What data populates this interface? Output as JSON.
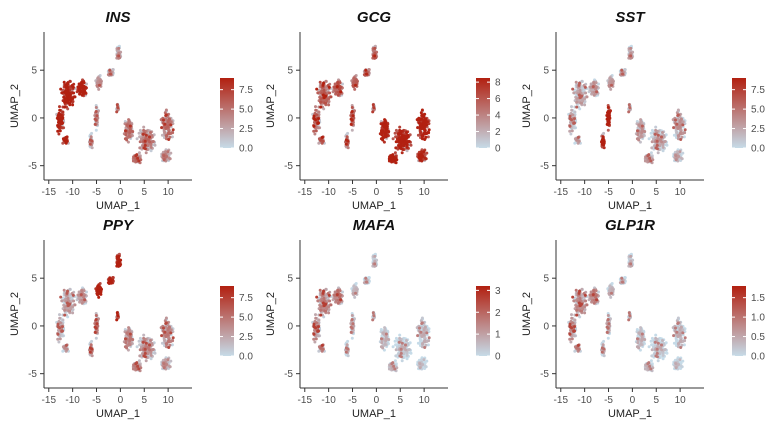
{
  "chart_data": [
    {
      "type": "scatter",
      "title": "INS",
      "xlabel": "UMAP_1",
      "ylabel": "UMAP_2",
      "xlim": [
        -16,
        15
      ],
      "ylim": [
        -6.5,
        9
      ],
      "x_ticks": [
        -15,
        -10,
        -5,
        0,
        5,
        10
      ],
      "y_ticks": [
        -5,
        0,
        5
      ],
      "x_tick_labels": [
        "-15",
        "-10",
        "-5",
        "0",
        "5",
        "10"
      ],
      "y_tick_labels": [
        "-5",
        "0",
        "5"
      ],
      "colorbar": {
        "min": 0,
        "max": 9,
        "ticks": [
          0,
          2.5,
          5,
          7.5
        ],
        "tick_labels": [
          "0.0",
          "2.5",
          "5.0",
          "7.5"
        ],
        "low_color": "#c6dbe8",
        "high_color": "#b22010"
      },
      "cluster_expression": {
        "left_island": 8.5,
        "mid_arm": 2.0,
        "upper_arm": 2.0,
        "small_group": 2.5,
        "right_island": 3.5
      }
    },
    {
      "type": "scatter",
      "title": "GCG",
      "xlabel": "UMAP_1",
      "ylabel": "UMAP_2",
      "xlim": [
        -16,
        15
      ],
      "ylim": [
        -6.5,
        9
      ],
      "x_ticks": [
        -15,
        -10,
        -5,
        0,
        5,
        10
      ],
      "y_ticks": [
        -5,
        0,
        5
      ],
      "x_tick_labels": [
        "-15",
        "-10",
        "-5",
        "0",
        "5",
        "10"
      ],
      "y_tick_labels": [
        "-5",
        "0",
        "5"
      ],
      "colorbar": {
        "min": 0,
        "max": 8.5,
        "ticks": [
          0,
          2,
          4,
          6,
          8
        ],
        "tick_labels": [
          "0",
          "2",
          "4",
          "6",
          "8"
        ],
        "low_color": "#c6dbe8",
        "high_color": "#b22010"
      },
      "cluster_expression": {
        "left_island": 4.5,
        "mid_arm": 4.0,
        "upper_arm": 4.0,
        "small_group": 3.0,
        "right_island": 7.8
      }
    },
    {
      "type": "scatter",
      "title": "SST",
      "xlabel": "UMAP_1",
      "ylabel": "UMAP_2",
      "xlim": [
        -16,
        15
      ],
      "ylim": [
        -6.5,
        9
      ],
      "x_ticks": [
        -15,
        -10,
        -5,
        0,
        5,
        10
      ],
      "y_ticks": [
        -5,
        0,
        5
      ],
      "x_tick_labels": [
        "-15",
        "-10",
        "-5",
        "0",
        "5",
        "10"
      ],
      "y_tick_labels": [
        "-5",
        "0",
        "5"
      ],
      "colorbar": {
        "min": 0,
        "max": 9,
        "ticks": [
          0,
          2.5,
          5,
          7.5
        ],
        "tick_labels": [
          "0.0",
          "2.5",
          "5.0",
          "7.5"
        ],
        "low_color": "#c6dbe8",
        "high_color": "#b22010"
      },
      "cluster_expression": {
        "left_island": 1.5,
        "mid_arm": 8.0,
        "upper_arm": 1.5,
        "small_group": 1.0,
        "right_island": 1.5
      }
    },
    {
      "type": "scatter",
      "title": "PPY",
      "xlabel": "UMAP_1",
      "ylabel": "UMAP_2",
      "xlim": [
        -16,
        15
      ],
      "ylim": [
        -6.5,
        9
      ],
      "x_ticks": [
        -15,
        -10,
        -5,
        0,
        5,
        10
      ],
      "y_ticks": [
        -5,
        0,
        5
      ],
      "x_tick_labels": [
        "-15",
        "-10",
        "-5",
        "0",
        "5",
        "10"
      ],
      "y_tick_labels": [
        "-5",
        "0",
        "5"
      ],
      "colorbar": {
        "min": 0,
        "max": 9,
        "ticks": [
          0,
          2.5,
          5,
          7.5
        ],
        "tick_labels": [
          "0.0",
          "2.5",
          "5.0",
          "7.5"
        ],
        "low_color": "#c6dbe8",
        "high_color": "#b22010"
      },
      "cluster_expression": {
        "left_island": 1.8,
        "mid_arm": 3.0,
        "upper_arm": 8.3,
        "small_group": 5.0,
        "right_island": 2.5
      }
    },
    {
      "type": "scatter",
      "title": "MAFA",
      "xlabel": "UMAP_1",
      "ylabel": "UMAP_2",
      "xlim": [
        -16,
        15
      ],
      "ylim": [
        -6.5,
        9
      ],
      "x_ticks": [
        -15,
        -10,
        -5,
        0,
        5,
        10
      ],
      "y_ticks": [
        -5,
        0,
        5
      ],
      "x_tick_labels": [
        "-15",
        "-10",
        "-5",
        "0",
        "5",
        "10"
      ],
      "y_tick_labels": [
        "-5",
        "0",
        "5"
      ],
      "colorbar": {
        "min": 0,
        "max": 3.2,
        "ticks": [
          0,
          1,
          2,
          3
        ],
        "tick_labels": [
          "0",
          "1",
          "2",
          "3"
        ],
        "low_color": "#c6dbe8",
        "high_color": "#b22010"
      },
      "cluster_expression": {
        "left_island": 1.1,
        "mid_arm": 0.2,
        "upper_arm": 0.05,
        "small_group": 0.1,
        "right_island": 0.02
      }
    },
    {
      "type": "scatter",
      "title": "GLP1R",
      "xlabel": "UMAP_1",
      "ylabel": "UMAP_2",
      "xlim": [
        -16,
        15
      ],
      "ylim": [
        -6.5,
        9
      ],
      "x_ticks": [
        -15,
        -10,
        -5,
        0,
        5,
        10
      ],
      "y_ticks": [
        -5,
        0,
        5
      ],
      "x_tick_labels": [
        "-15",
        "-10",
        "-5",
        "0",
        "5",
        "10"
      ],
      "y_tick_labels": [
        "-5",
        "0",
        "5"
      ],
      "colorbar": {
        "min": 0,
        "max": 1.8,
        "ticks": [
          0,
          0.5,
          1,
          1.5
        ],
        "tick_labels": [
          "0.0",
          "0.5",
          "1.0",
          "1.5"
        ],
        "low_color": "#c6dbe8",
        "high_color": "#b22010"
      },
      "cluster_expression": {
        "left_island": 0.55,
        "mid_arm": 0.15,
        "upper_arm": 0.05,
        "small_group": 0.1,
        "right_island": 0.02
      }
    }
  ]
}
